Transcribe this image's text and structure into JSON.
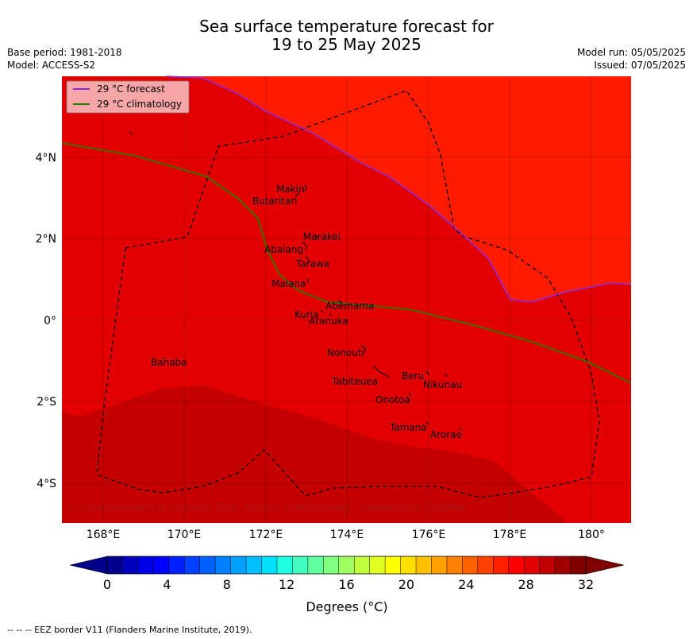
{
  "title": {
    "line1": "Sea surface temperature forecast for",
    "line2": "19 to 25 May 2025"
  },
  "meta": {
    "base_period": "Base period: 1981-2018",
    "model": "Model: ACCESS-S2",
    "model_run": "Model run: 05/05/2025",
    "issued": "Issued: 07/05/2025"
  },
  "map": {
    "lon_ticks": [
      "168°E",
      "170°E",
      "172°E",
      "174°E",
      "176°E",
      "178°E",
      "180°"
    ],
    "lat_ticks": [
      "4°N",
      "2°N",
      "0°",
      "2°S",
      "4°S"
    ],
    "places": [
      "Makin",
      "Butaritari",
      "Marakei",
      "Abaiang",
      "Tarawa",
      "Maiana",
      "Abemama",
      "Kuria",
      "Aranuka",
      "Nonouti",
      "Tabiteuea",
      "Beru",
      "Nikunau",
      "Onotoa",
      "Tamana",
      "Arorae",
      "Banaba"
    ],
    "copyright": "© Commonwealth of Australia 2025, Bureau of Meteorology, supported by COSPPac",
    "colors": {
      "over_32": "#c40000",
      "c30_31": "#e30000",
      "c31_32": "#ff1a00",
      "forecast_line": "#8a2be2",
      "climatology_line": "#2a7a00"
    }
  },
  "legend": {
    "forecast": "29 °C  forecast",
    "climatology": "29 °C  climatology"
  },
  "colorbar": {
    "tick_labels": [
      "0",
      "4",
      "8",
      "12",
      "16",
      "20",
      "24",
      "28",
      "32"
    ],
    "label": "Degrees (°C)",
    "colors": [
      "#00008b",
      "#0000bf",
      "#0000e6",
      "#0000ff",
      "#0020ff",
      "#0040ff",
      "#0060ff",
      "#0080ff",
      "#00a0ff",
      "#00c0ff",
      "#00e0ff",
      "#20ffe0",
      "#40ffc0",
      "#60ffa0",
      "#80ff80",
      "#a0ff60",
      "#c0ff40",
      "#e0ff20",
      "#ffff00",
      "#ffe000",
      "#ffc000",
      "#ffa000",
      "#ff8000",
      "#ff6000",
      "#ff4000",
      "#ff2000",
      "#ff0000",
      "#e00000",
      "#c00000",
      "#a00000",
      "#800000"
    ],
    "under_color": "#00008b",
    "over_color": "#800000"
  },
  "footer": "--  --  -- EEZ border V11 (Flanders Marine Institute, 2019)."
}
